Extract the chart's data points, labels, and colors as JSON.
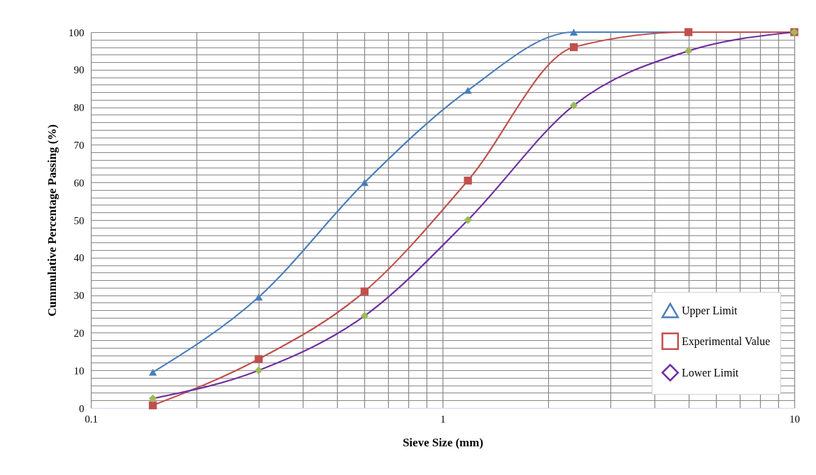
{
  "chart_data": {
    "type": "line",
    "xlabel": "Sieve Size (mm)",
    "ylabel": "Cummulative Percentage Passing (%)",
    "x": [
      0.15,
      0.3,
      0.6,
      1.18,
      2.36,
      5,
      10
    ],
    "series": [
      {
        "name": "Upper Limit",
        "color": "#4a7ebb",
        "colors": [
          "#4a7ebb",
          "#4a7ebb",
          "#4a7ebb",
          "#4a7ebb",
          "#4a7ebb",
          "#4a7ebb",
          "#4a7ebb"
        ],
        "marker": "triangle",
        "values": [
          9.5,
          29.5,
          60,
          84.5,
          100,
          100,
          100
        ]
      },
      {
        "name": "Experimental Value",
        "color": "#c0504d",
        "colors": [
          "#c0504d",
          "#c0504d",
          "#c0504d",
          "#c0504d",
          "#c0504d",
          "#c0504d",
          "#c0504d"
        ],
        "marker": "square",
        "values": [
          0.7,
          13,
          31,
          60.5,
          96,
          100,
          100
        ]
      },
      {
        "name": "Lower Limit",
        "color": "#7030a0",
        "colors": [
          "#9bbb59",
          "#9bbb59",
          "#9bbb59",
          "#9bbb59",
          "#9bbb59",
          "#9bbb59",
          "#9bbb59"
        ],
        "marker": "diamond",
        "values": [
          2.5,
          10,
          24.5,
          50,
          80.5,
          95,
          100
        ]
      }
    ],
    "log": "x",
    "xlim": [
      0.1,
      10
    ],
    "xticks": [
      0.1,
      {
        "value": 0.2,
        "label": null
      },
      {
        "value": 0.3,
        "label": null
      },
      {
        "value": 0.4,
        "label": null
      },
      {
        "value": 0.5,
        "label": null
      },
      {
        "value": 0.6,
        "label": null
      },
      {
        "value": 0.7,
        "label": null
      },
      {
        "value": 0.8,
        "label": null
      },
      {
        "value": 0.9,
        "label": null
      },
      1,
      {
        "value": 2,
        "label": null
      },
      {
        "value": 3,
        "label": null
      },
      {
        "value": 4,
        "label": null
      },
      {
        "value": 5,
        "label": null
      },
      {
        "value": 6,
        "label": null
      },
      {
        "value": 7,
        "label": null
      },
      {
        "value": 8,
        "label": null
      },
      {
        "value": 9,
        "label": null
      },
      10
    ],
    "ylim": [
      0,
      100
    ],
    "yticks": [
      0,
      {
        "value": 2,
        "label": null
      },
      {
        "value": 4,
        "label": null
      },
      {
        "value": 6,
        "label": null
      },
      {
        "value": 8,
        "label": null
      },
      10,
      {
        "value": 12,
        "label": null
      },
      {
        "value": 14,
        "label": null
      },
      {
        "value": 16,
        "label": null
      },
      {
        "value": 18,
        "label": null
      },
      20,
      {
        "value": 22,
        "label": null
      },
      {
        "value": 24,
        "label": null
      },
      {
        "value": 26,
        "label": null
      },
      {
        "value": 28,
        "label": null
      },
      30,
      {
        "value": 32,
        "label": null
      },
      {
        "value": 34,
        "label": null
      },
      {
        "value": 36,
        "label": null
      },
      {
        "value": 38,
        "label": null
      },
      40,
      {
        "value": 42,
        "label": null
      },
      {
        "value": 44,
        "label": null
      },
      {
        "value": 46,
        "label": null
      },
      {
        "value": 48,
        "label": null
      },
      50,
      {
        "value": 52,
        "label": null
      },
      {
        "value": 54,
        "label": null
      },
      {
        "value": 56,
        "label": null
      },
      {
        "value": 58,
        "label": null
      },
      60,
      {
        "value": 62,
        "label": null
      },
      {
        "value": 64,
        "label": null
      },
      {
        "value": 66,
        "label": null
      },
      {
        "value": 68,
        "label": null
      },
      70,
      {
        "value": 72,
        "label": null
      },
      {
        "value": 74,
        "label": null
      },
      {
        "value": 76,
        "label": null
      },
      {
        "value": 78,
        "label": null
      },
      80,
      {
        "value": 82,
        "label": null
      },
      {
        "value": 84,
        "label": null
      },
      {
        "value": 86,
        "label": null
      },
      {
        "value": 88,
        "label": null
      },
      90,
      {
        "value": 92,
        "label": null
      },
      {
        "value": 94,
        "label": null
      },
      {
        "value": 96,
        "label": null
      },
      {
        "value": 98,
        "label": null
      },
      100
    ],
    "grid": true,
    "legend": "bottom right",
    "line_style": "solid"
  }
}
